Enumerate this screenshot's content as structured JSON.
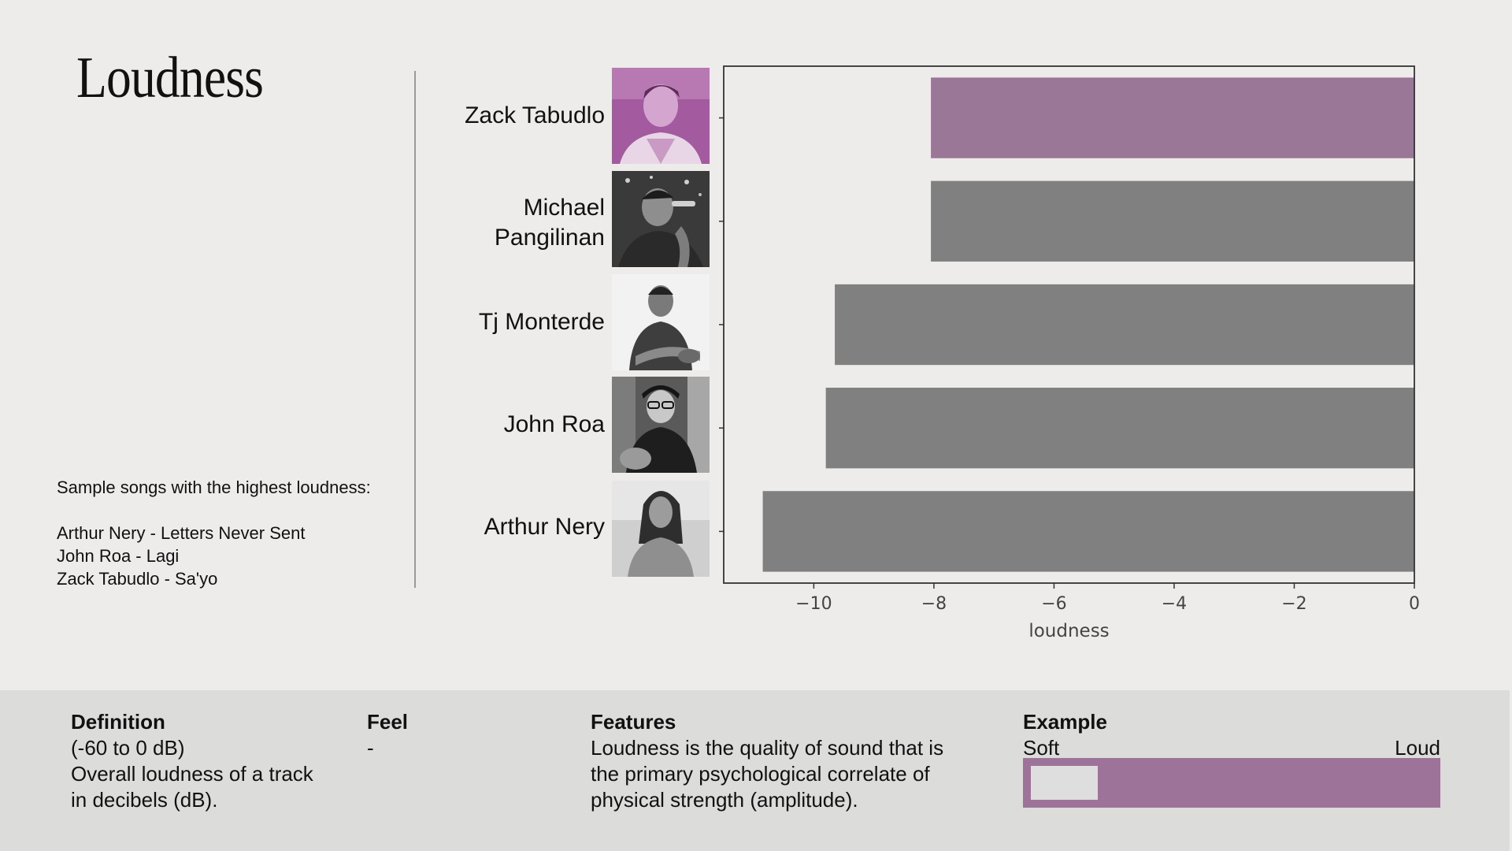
{
  "title": "Loudness",
  "samples": {
    "heading": "Sample songs with the highest loudness:",
    "songs": [
      "Arthur Nery - Letters Never Sent",
      "John Roa - Lagi",
      "Zack Tabudlo - Sa'yo"
    ]
  },
  "artists": [
    {
      "line1": "Zack Tabudlo",
      "line2": ""
    },
    {
      "line1": "Michael",
      "line2": "Pangilinan"
    },
    {
      "line1": "Tj Monterde",
      "line2": ""
    },
    {
      "line1": "John Roa",
      "line2": ""
    },
    {
      "line1": "Arthur Nery",
      "line2": ""
    }
  ],
  "colors": {
    "highlight": "#9b7797",
    "bar": "#808080",
    "accent": "#9d7399",
    "panel": "#dcdcdb"
  },
  "chart_data": {
    "type": "bar",
    "orientation": "horizontal",
    "categories": [
      "Zack Tabudlo",
      "Michael Pangilinan",
      "Tj Monterde",
      "John Roa",
      "Arthur Nery"
    ],
    "values": [
      -8.05,
      -8.05,
      -9.65,
      -9.8,
      -10.85
    ],
    "highlighted_index": 0,
    "xlabel": "loudness",
    "ylabel": "",
    "xlim": [
      -11.5,
      0
    ],
    "xticks": [
      -10,
      -8,
      -6,
      -4,
      -2,
      0
    ],
    "xtick_labels": [
      "−10",
      "−8",
      "−6",
      "−4",
      "−2",
      "0"
    ],
    "grid": false
  },
  "info": {
    "definition": {
      "heading": "Definition",
      "lines": [
        "(-60 to 0 dB)",
        "Overall loudness of a track",
        "in decibels (dB)."
      ]
    },
    "feel": {
      "heading": "Feel",
      "lines": [
        "-"
      ]
    },
    "features": {
      "heading": "Features",
      "lines": [
        "Loudness is the quality of sound that is",
        "the primary psychological correlate of",
        "physical strength (amplitude)."
      ]
    },
    "example": {
      "heading": "Example",
      "low_label": "Soft",
      "high_label": "Loud",
      "level": 0.16
    }
  }
}
